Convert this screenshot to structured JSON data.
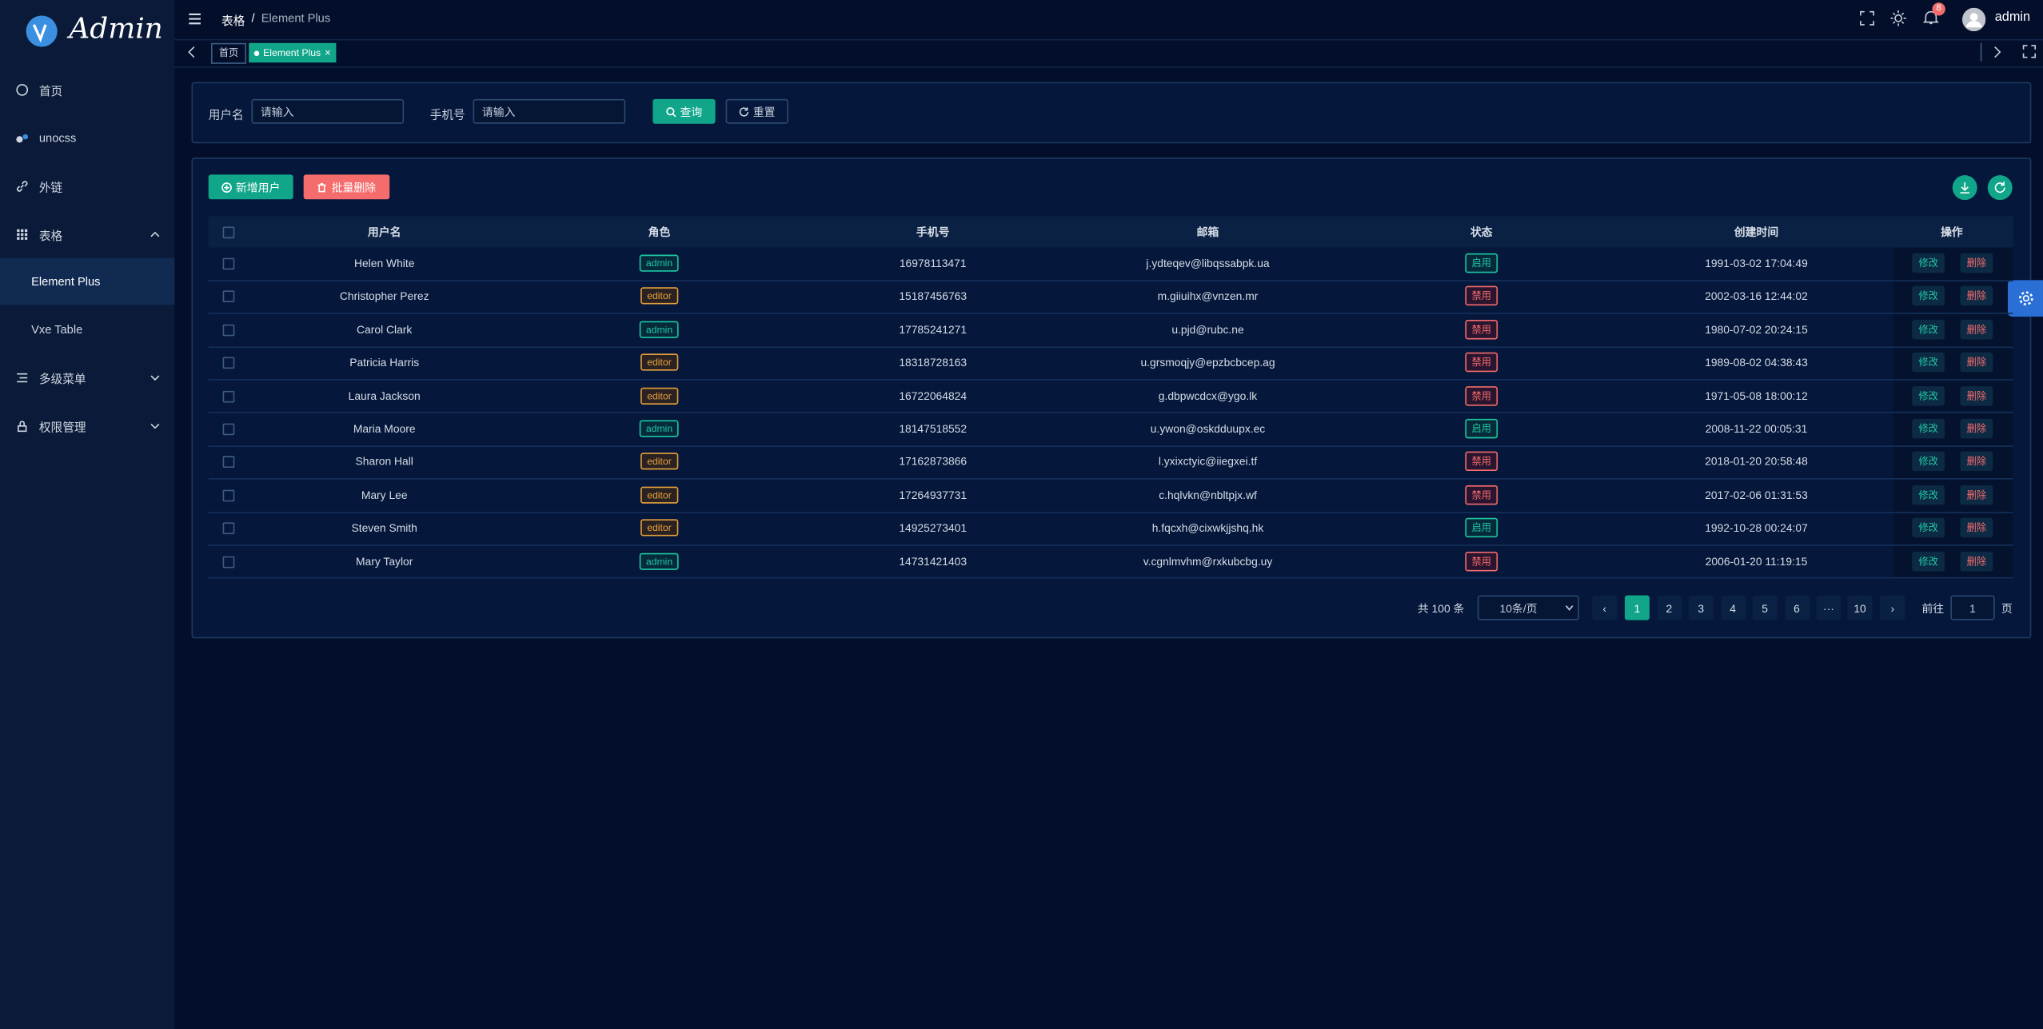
{
  "sidebar": {
    "logo": "Admin",
    "menu": [
      {
        "label": "首页"
      },
      {
        "label": "unocss"
      },
      {
        "label": "外链"
      },
      {
        "label": "表格"
      },
      {
        "label": "Element Plus"
      },
      {
        "label": "Vxe Table"
      },
      {
        "label": "多级菜单"
      },
      {
        "label": "权限管理"
      }
    ]
  },
  "header": {
    "breadcrumb": [
      "表格",
      "Element Plus"
    ],
    "breadcrumb_separator": "/",
    "notification_count": 8,
    "username": "admin"
  },
  "tags": [
    "首页",
    "Element Plus"
  ],
  "search": {
    "fields": [
      {
        "label": "用户名",
        "placeholder": "请输入"
      },
      {
        "label": "手机号",
        "placeholder": "请输入"
      }
    ],
    "buttons": [
      "查询",
      "重置"
    ]
  },
  "table": {
    "actions": [
      "新增用户",
      "批量删除"
    ],
    "columns": [
      "用户名",
      "角色",
      "手机号",
      "邮箱",
      "状态",
      "创建时间",
      "操作"
    ],
    "rows": [
      [
        "Helen White",
        "admin",
        "16978113471",
        "j.ydteqev@libqssabpk.ua",
        "启用",
        "1991-03-02 17:04:49"
      ],
      [
        "Christopher Perez",
        "editor",
        "15187456763",
        "m.giiuihx@vnzen.mr",
        "禁用",
        "2002-03-16 12:44:02"
      ],
      [
        "Carol Clark",
        "admin",
        "17785241271",
        "u.pjd@rubc.ne",
        "禁用",
        "1980-07-02 20:24:15"
      ],
      [
        "Patricia Harris",
        "editor",
        "18318728163",
        "u.grsmoqjy@epzbcbcep.ag",
        "禁用",
        "1989-08-02 04:38:43"
      ],
      [
        "Laura Jackson",
        "editor",
        "16722064824",
        "g.dbpwcdcx@ygo.lk",
        "禁用",
        "1971-05-08 18:00:12"
      ],
      [
        "Maria Moore",
        "admin",
        "18147518552",
        "u.ywon@oskdduupx.ec",
        "启用",
        "2008-11-22 00:05:31"
      ],
      [
        "Sharon Hall",
        "editor",
        "17162873866",
        "l.yxixctyic@iiegxei.tf",
        "禁用",
        "2018-01-20 20:58:48"
      ],
      [
        "Mary Lee",
        "editor",
        "17264937731",
        "c.hqlvkn@nbltpjx.wf",
        "禁用",
        "2017-02-06 01:31:53"
      ],
      [
        "Steven Smith",
        "editor",
        "14925273401",
        "h.fqcxh@cixwkjjshq.hk",
        "启用",
        "1992-10-28 00:24:07"
      ],
      [
        "Mary Taylor",
        "admin",
        "14731421403",
        "v.cgnlmvhm@rxkubcbg.uy",
        "禁用",
        "2006-01-20 11:19:15"
      ]
    ],
    "row_actions": [
      "修改",
      "删除"
    ]
  },
  "pagination": {
    "total": "共 100 条",
    "page_size": "10条/页",
    "pages": [
      1,
      2,
      3,
      4,
      5,
      6
    ],
    "last_page": 10,
    "goto": "前往",
    "goto_value": 1,
    "unit": "页"
  }
}
